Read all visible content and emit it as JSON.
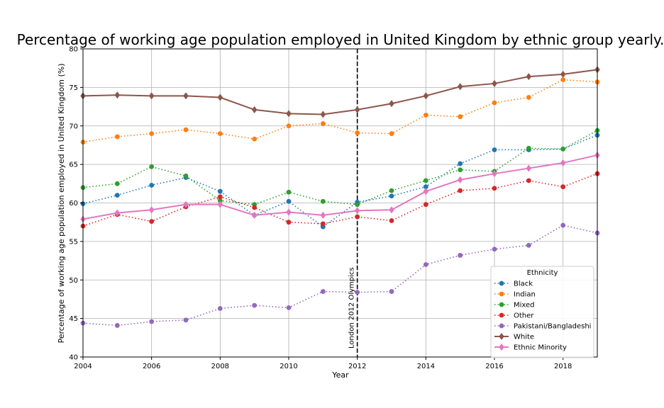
{
  "chart_data": {
    "type": "line",
    "title": "Percentage of working age population employed in United Kingdom by ethnic group yearly.",
    "xlabel": "Year",
    "ylabel": "Percentage of working age population employed in United Kingdom (%)",
    "xlim": [
      2004,
      2019
    ],
    "ylim": [
      40,
      80
    ],
    "x_ticks": [
      2004,
      2006,
      2008,
      2010,
      2012,
      2014,
      2016,
      2018
    ],
    "y_ticks": [
      40,
      45,
      50,
      55,
      60,
      65,
      70,
      75,
      80
    ],
    "grid": true,
    "legend": {
      "title": "Ethnicity",
      "placement": "lower-right"
    },
    "x": [
      2004,
      2005,
      2006,
      2007,
      2008,
      2009,
      2010,
      2011,
      2012,
      2013,
      2014,
      2015,
      2016,
      2017,
      2018,
      2019
    ],
    "series": [
      {
        "name": "Black",
        "color": "#1f77b4",
        "style": "dotted",
        "marker": "circle",
        "values": [
          59.9,
          61.0,
          62.3,
          63.3,
          61.5,
          58.4,
          60.2,
          56.9,
          60.1,
          60.9,
          62.1,
          65.1,
          66.9,
          66.9,
          67.0,
          68.8
        ]
      },
      {
        "name": "Indian",
        "color": "#ff7f0e",
        "style": "dotted",
        "marker": "circle",
        "values": [
          67.9,
          68.6,
          69.0,
          69.5,
          69.0,
          68.3,
          70.0,
          70.3,
          69.1,
          69.0,
          71.4,
          71.2,
          73.0,
          73.7,
          76.0,
          75.7
        ]
      },
      {
        "name": "Mixed",
        "color": "#2ca02c",
        "style": "dotted",
        "marker": "circle",
        "values": [
          62.0,
          62.5,
          64.7,
          63.5,
          60.3,
          59.8,
          61.4,
          60.2,
          59.8,
          61.6,
          62.9,
          64.3,
          64.1,
          67.1,
          67.0,
          69.4
        ]
      },
      {
        "name": "Other",
        "color": "#d62728",
        "style": "dotted",
        "marker": "circle",
        "values": [
          57.0,
          58.5,
          57.6,
          59.5,
          60.8,
          59.4,
          57.5,
          57.3,
          58.2,
          57.7,
          59.8,
          61.6,
          61.9,
          62.9,
          62.1,
          63.8
        ]
      },
      {
        "name": "Pakistani/Bangladeshi",
        "color": "#9467bd",
        "style": "dotted",
        "marker": "circle",
        "values": [
          44.4,
          44.1,
          44.6,
          44.8,
          46.3,
          46.7,
          46.4,
          48.5,
          48.4,
          48.5,
          52.0,
          53.2,
          54.0,
          54.5,
          57.1,
          56.1
        ]
      },
      {
        "name": "White",
        "color": "#8c564b",
        "style": "solid",
        "marker": "diamond",
        "values": [
          73.9,
          74.0,
          73.9,
          73.9,
          73.7,
          72.1,
          71.6,
          71.5,
          72.1,
          72.9,
          73.9,
          75.1,
          75.5,
          76.4,
          76.7,
          77.3
        ]
      },
      {
        "name": "Ethnic Minority",
        "color": "#e377c2",
        "style": "solid",
        "marker": "diamond",
        "values": [
          57.9,
          58.7,
          59.1,
          59.8,
          59.8,
          58.4,
          58.8,
          58.4,
          59.0,
          59.1,
          61.5,
          63.0,
          63.8,
          64.5,
          65.2,
          66.2
        ]
      }
    ],
    "annotations": [
      {
        "x": 2012,
        "text": "London 2012 Olympics",
        "style": "dashed-vertical-line",
        "color": "#000000"
      }
    ]
  }
}
